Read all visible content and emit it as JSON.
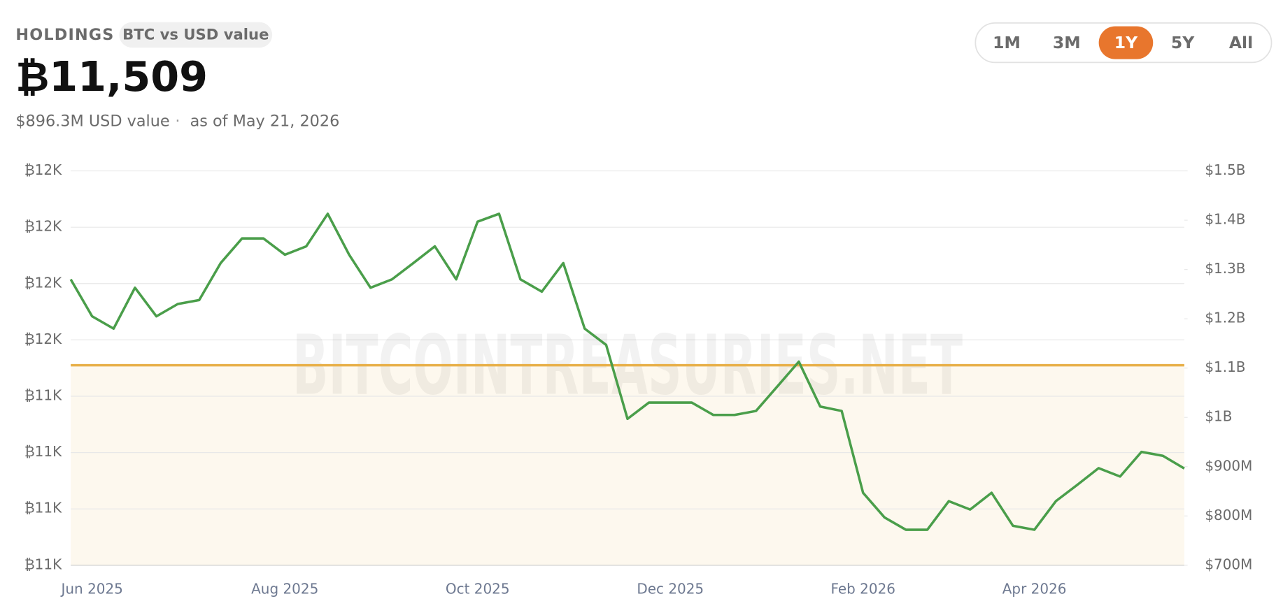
{
  "header": {
    "label": "HOLDINGS",
    "badge": "BTC vs USD value",
    "amount": "₿11,509",
    "usd_value": "$896.3M USD value",
    "separator": "·",
    "as_of": "as of May 21, 2026"
  },
  "range_buttons": [
    "1M",
    "3M",
    "1Y",
    "5Y",
    "All"
  ],
  "active_range": 2,
  "chart_data": {
    "type": "line",
    "watermark": "BITCOINTREASURIES.NET",
    "grid": true,
    "categories": [
      null,
      "Jun 2025",
      null,
      null,
      null,
      null,
      null,
      null,
      null,
      null,
      "Aug 2025",
      null,
      null,
      null,
      null,
      null,
      null,
      null,
      null,
      "Oct 2025",
      null,
      null,
      null,
      null,
      null,
      null,
      null,
      null,
      "Dec 2025",
      null,
      null,
      null,
      null,
      null,
      null,
      null,
      null,
      "Feb 2026",
      null,
      null,
      null,
      null,
      null,
      null,
      null,
      "Apr 2026",
      null,
      null,
      null,
      null,
      null,
      null,
      null
    ],
    "ylim": [
      11438,
      11578
    ],
    "yticks": [
      {
        "value": 11438,
        "label": "₿11K"
      },
      {
        "value": 11458,
        "label": "₿11K"
      },
      {
        "value": 11478,
        "label": "₿11K"
      },
      {
        "value": 11498,
        "label": "₿11K"
      },
      {
        "value": 11518,
        "label": "₿12K"
      },
      {
        "value": 11538,
        "label": "₿12K"
      },
      {
        "value": 11558,
        "label": "₿12K"
      },
      {
        "value": 11578,
        "label": "₿12K"
      }
    ],
    "y2lim": [
      700000000,
      1500000000
    ],
    "y2ticks": [
      {
        "value": 700000000,
        "label": "$700M"
      },
      {
        "value": 800000000,
        "label": "$800M"
      },
      {
        "value": 900000000,
        "label": "$900M"
      },
      {
        "value": 1000000000,
        "label": "$1B"
      },
      {
        "value": 1100000000,
        "label": "$1.1B"
      },
      {
        "value": 1200000000,
        "label": "$1.2B"
      },
      {
        "value": 1300000000,
        "label": "$1.3B"
      },
      {
        "value": 1400000000,
        "label": "$1.4B"
      },
      {
        "value": 1500000000,
        "label": "$1.5B"
      }
    ],
    "holdings": {
      "value": 11509,
      "color": "#e8b04a",
      "fill": "#fdf8ee"
    },
    "series": [
      {
        "color": "#4a9e4a",
        "axis": "y2",
        "values": [
          1280000000,
          1205000000,
          1180000000,
          1263000000,
          1205000000,
          1230000000,
          1238000000,
          1313000000,
          1363000000,
          1363000000,
          1330000000,
          1347000000,
          1413000000,
          1330000000,
          1263000000,
          1280000000,
          1313000000,
          1347000000,
          1280000000,
          1397000000,
          1413000000,
          1280000000,
          1255000000,
          1313000000,
          1180000000,
          1147000000,
          997000000,
          1030000000,
          1030000000,
          1030000000,
          1005000000,
          1005000000,
          1013000000,
          1063000000,
          1113000000,
          1022000000,
          1013000000,
          847000000,
          797000000,
          772000000,
          772000000,
          830000000,
          813000000,
          847000000,
          780000000,
          772000000,
          830000000,
          863000000,
          897000000,
          880000000,
          930000000,
          922000000,
          896300000
        ]
      }
    ]
  }
}
